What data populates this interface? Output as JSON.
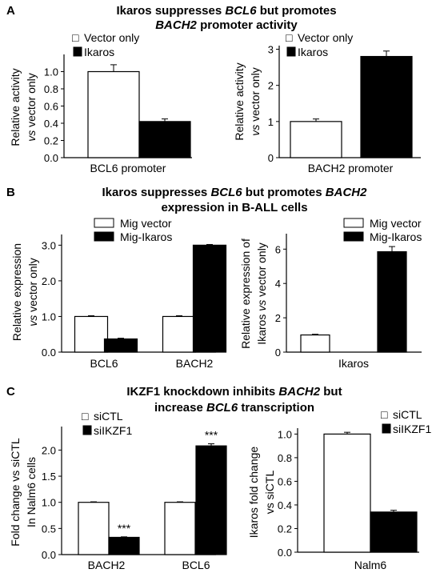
{
  "panels": [
    {
      "letter": "A",
      "title_lines": [
        [
          {
            "t": "Ikaros suppresses "
          },
          {
            "t": "BCL6",
            "i": true
          },
          {
            "t": " but promotes"
          }
        ],
        [
          {
            "t": "BACH2",
            "i": true
          },
          {
            "t": " promoter activity"
          }
        ]
      ]
    },
    {
      "letter": "B",
      "title_lines": [
        [
          {
            "t": "Ikaros suppresses "
          },
          {
            "t": "BCL6",
            "i": true
          },
          {
            "t": " but promotes "
          },
          {
            "t": "BACH2",
            "i": true
          }
        ],
        [
          {
            "t": "expression in B-ALL cells"
          }
        ]
      ]
    },
    {
      "letter": "C",
      "title_lines": [
        [
          {
            "t": "IKZF1 knockdown inhibits "
          },
          {
            "t": "BACH2",
            "i": true
          },
          {
            "t": " but"
          }
        ],
        [
          {
            "t": "increase "
          },
          {
            "t": "BCL6",
            "i": true
          },
          {
            "t": " transcription"
          }
        ]
      ]
    }
  ],
  "chart_data": [
    {
      "type": "bar",
      "categories": [
        "BCL6 promoter"
      ],
      "series": [
        {
          "name": "Vector only",
          "values": [
            1.0
          ],
          "errors": [
            0.08
          ],
          "color": "#ffffff"
        },
        {
          "name": "Ikaros",
          "values": [
            0.42
          ],
          "errors": [
            0.03
          ],
          "color": "#000000"
        }
      ],
      "legend_prefix": "□",
      "ylabel_lines": [
        [
          {
            "t": "Relative activity"
          }
        ],
        [
          {
            "t": "vs",
            "i": true
          },
          {
            "t": " vector only"
          }
        ]
      ],
      "ylim": [
        0,
        1.2
      ],
      "yticks": [
        "0.0",
        "0.2",
        "0.4",
        "0.6",
        "0.8",
        "1.0"
      ],
      "ytick_values": [
        0,
        0.2,
        0.4,
        0.6,
        0.8,
        1.0
      ],
      "annotations": []
    },
    {
      "type": "bar",
      "categories": [
        "BACH2 promoter"
      ],
      "series": [
        {
          "name": "Vector only",
          "values": [
            1.0
          ],
          "errors": [
            0.07
          ],
          "color": "#ffffff"
        },
        {
          "name": "Ikaros",
          "values": [
            2.8
          ],
          "errors": [
            0.15
          ],
          "color": "#000000"
        }
      ],
      "legend_prefix": "□",
      "ylabel_lines": [
        [
          {
            "t": "Relative activity"
          }
        ],
        [
          {
            "t": "vs",
            "i": true
          },
          {
            "t": " vector only"
          }
        ]
      ],
      "ylim": [
        0,
        3.1
      ],
      "yticks": [
        "0",
        "1",
        "2",
        "3"
      ],
      "ytick_values": [
        0,
        1,
        2,
        3
      ],
      "annotations": []
    },
    {
      "type": "bar",
      "categories": [
        "BCL6",
        "BACH2"
      ],
      "series": [
        {
          "name": "Mig vector",
          "values": [
            1.0,
            1.0
          ],
          "errors": [
            0.02,
            0.02
          ],
          "color": "#ffffff"
        },
        {
          "name": "Mig-Ikaros",
          "values": [
            0.37,
            3.0
          ],
          "errors": [
            0.02,
            0.02
          ],
          "color": "#000000"
        }
      ],
      "legend_prefix": "",
      "ylabel_lines": [
        [
          {
            "t": "Relative expression"
          }
        ],
        [
          {
            "t": "vs",
            "i": true
          },
          {
            "t": " vector only"
          }
        ]
      ],
      "ylim": [
        0,
        3.3
      ],
      "yticks": [
        "0.0",
        "1.0",
        "2.0",
        "3.0"
      ],
      "ytick_values": [
        0,
        1,
        2,
        3
      ],
      "annotations": []
    },
    {
      "type": "bar",
      "categories": [
        "Ikaros"
      ],
      "series": [
        {
          "name": "Mig vector",
          "values": [
            1.0
          ],
          "errors": [
            0.04
          ],
          "color": "#ffffff"
        },
        {
          "name": "Mig-Ikaros",
          "values": [
            5.85
          ],
          "errors": [
            0.3
          ],
          "color": "#000000"
        }
      ],
      "legend_prefix": "",
      "ylabel_lines": [
        [
          {
            "t": "Relative expression of"
          }
        ],
        [
          {
            "t": "Ikaros  "
          },
          {
            "t": "vs",
            "i": true
          },
          {
            "t": " vector only"
          }
        ]
      ],
      "ylim": [
        0,
        6.9
      ],
      "yticks": [
        "0",
        "2",
        "4",
        "6"
      ],
      "ytick_values": [
        0,
        2,
        4,
        6
      ],
      "annotations": []
    },
    {
      "type": "bar",
      "categories": [
        "BACH2",
        "BCL6"
      ],
      "series": [
        {
          "name": "siCTL",
          "values": [
            1.0,
            1.0
          ],
          "errors": [
            0.01,
            0.01
          ],
          "color": "#ffffff"
        },
        {
          "name": "siIKZF1",
          "values": [
            0.33,
            2.08
          ],
          "errors": [
            0.01,
            0.04
          ],
          "color": "#000000"
        }
      ],
      "legend_prefix": "□",
      "ylabel_lines": [
        [
          {
            "t": "Fold change vs siCTL"
          }
        ],
        [
          {
            "t": "In Nalm6 cells"
          }
        ]
      ],
      "ylim": [
        0,
        2.45
      ],
      "yticks": [
        "0.0",
        "0.5",
        "1.0",
        "1.5",
        "2.0"
      ],
      "ytick_values": [
        0,
        0.5,
        1.0,
        1.5,
        2.0
      ],
      "annotations": [
        "***",
        "***"
      ]
    },
    {
      "type": "bar",
      "categories": [
        "Nalm6"
      ],
      "series": [
        {
          "name": "siCTL",
          "values": [
            1.0
          ],
          "errors": [
            0.015
          ],
          "color": "#ffffff"
        },
        {
          "name": "siIKZF1",
          "values": [
            0.34
          ],
          "errors": [
            0.015
          ],
          "color": "#000000"
        }
      ],
      "legend_prefix": "□",
      "ylabel_lines": [
        [
          {
            "t": "Ikaros fold change"
          }
        ],
        [
          {
            "t": "vs siCTL"
          }
        ]
      ],
      "ylim": [
        0,
        1.05
      ],
      "yticks": [
        "0.0",
        "0.2",
        "0.4",
        "0.6",
        "0.8",
        "1.0"
      ],
      "ytick_values": [
        0,
        0.2,
        0.4,
        0.6,
        0.8,
        1.0
      ],
      "annotations": []
    }
  ]
}
